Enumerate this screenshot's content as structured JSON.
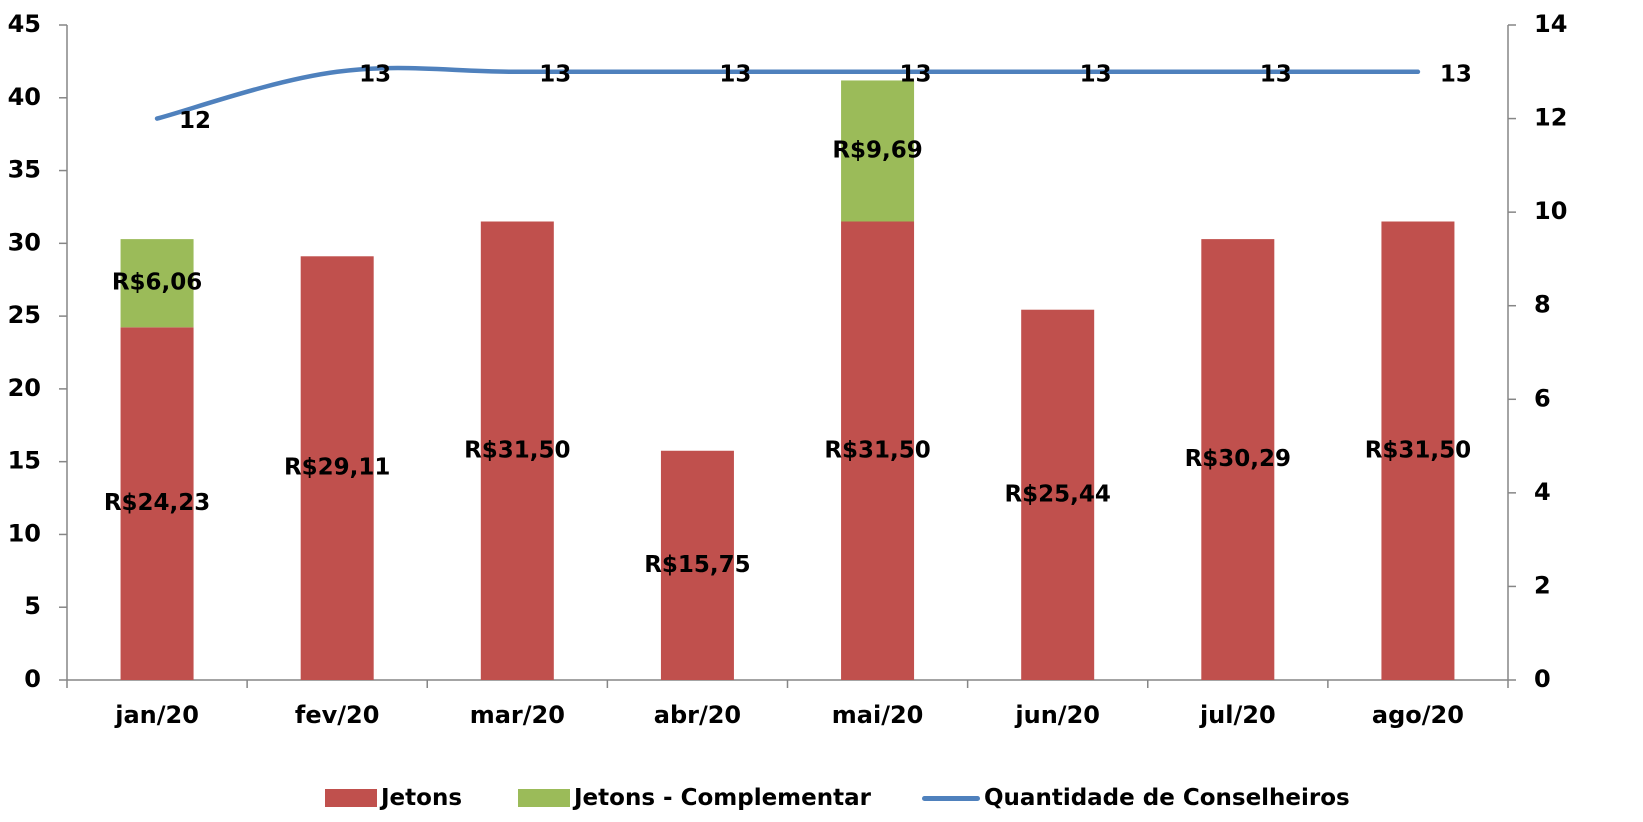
{
  "chart_data": {
    "type": "bar",
    "stacked": true,
    "categories": [
      "jan/20",
      "fev/20",
      "mar/20",
      "abr/20",
      "mai/20",
      "jun/20",
      "jul/20",
      "ago/20"
    ],
    "series": [
      {
        "name": "Jetons",
        "kind": "bar",
        "axis": "left",
        "color": "#c0504d",
        "values": [
          24.23,
          29.11,
          31.5,
          15.75,
          31.5,
          25.44,
          30.29,
          31.5
        ],
        "labels": [
          "R$24,23",
          "R$29,11",
          "R$31,50",
          "R$15,75",
          "R$31,50",
          "R$25,44",
          "R$30,29",
          "R$31,50"
        ]
      },
      {
        "name": "Jetons - Complementar",
        "kind": "bar",
        "axis": "left",
        "color": "#9bbb59",
        "values": [
          6.06,
          null,
          null,
          null,
          9.69,
          null,
          null,
          null
        ],
        "labels": [
          "R$6,06",
          "",
          "",
          "",
          "R$9,69",
          "",
          "",
          ""
        ]
      },
      {
        "name": "Quantidade de Conselheiros",
        "kind": "line",
        "axis": "right",
        "color": "#4f81bd",
        "values": [
          12,
          13,
          13,
          13,
          13,
          13,
          13,
          13
        ],
        "labels": [
          "12",
          "13",
          "13",
          "13",
          "13",
          "13",
          "13",
          "13"
        ]
      }
    ],
    "y_left": {
      "min": 0,
      "max": 45,
      "ticks": [
        "0",
        "5",
        "10",
        "15",
        "20",
        "25",
        "30",
        "35",
        "40",
        "45"
      ]
    },
    "y_right": {
      "min": 0,
      "max": 14,
      "ticks": [
        "0",
        "2",
        "4",
        "6",
        "8",
        "10",
        "12",
        "14"
      ]
    },
    "grid": false,
    "legend_position": "bottom"
  }
}
